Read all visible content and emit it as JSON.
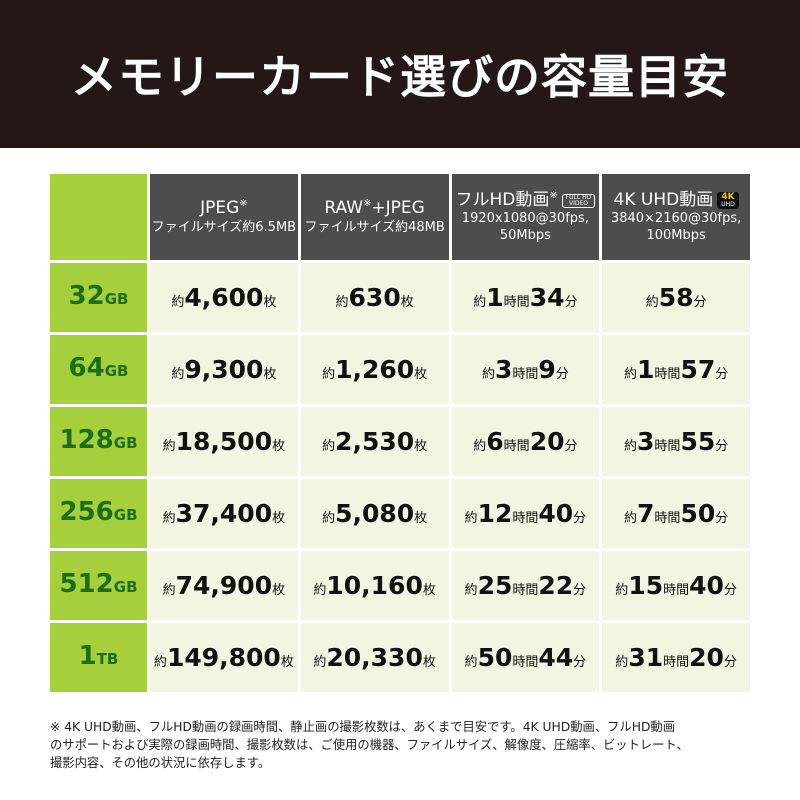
{
  "header": {
    "title": "メモリーカード選びの容量目安"
  },
  "table": {
    "columns": [
      {
        "line": [
          "JPEG",
          "※"
        ],
        "sub": [
          "ファイルサイズ約6.5MB"
        ]
      },
      {
        "line": [
          "RAW",
          "※",
          "+JPEG"
        ],
        "sub": [
          "ファイルサイズ約48MB"
        ]
      },
      {
        "line": [
          "フルHD動画",
          "※"
        ],
        "badge": [
          "FULL HD",
          "VIDEO"
        ],
        "sub": [
          "1920x1080@30fps,",
          "50Mbps"
        ]
      },
      {
        "line": [
          "4K UHD動画"
        ],
        "badge": [
          "4K",
          "UHD"
        ],
        "sub": [
          "3840×2160@30fps,",
          "100Mbps"
        ]
      }
    ],
    "rows": [
      {
        "label": [
          "32",
          "GB"
        ],
        "cells": [
          [
            "約",
            "4,600",
            "枚"
          ],
          [
            "約",
            "630",
            "枚"
          ],
          [
            "約",
            "1",
            "時間",
            "34",
            "分"
          ],
          [
            "約",
            "58",
            "分"
          ]
        ]
      },
      {
        "label": [
          "64",
          "GB"
        ],
        "cells": [
          [
            "約",
            "9,300",
            "枚"
          ],
          [
            "約",
            "1,260",
            "枚"
          ],
          [
            "約",
            "3",
            "時間",
            "9",
            "分"
          ],
          [
            "約",
            "1",
            "時間",
            "57",
            "分"
          ]
        ]
      },
      {
        "label": [
          "128",
          "GB"
        ],
        "cells": [
          [
            "約",
            "18,500",
            "枚"
          ],
          [
            "約",
            "2,530",
            "枚"
          ],
          [
            "約",
            "6",
            "時間",
            "20",
            "分"
          ],
          [
            "約",
            "3",
            "時間",
            "55",
            "分"
          ]
        ]
      },
      {
        "label": [
          "256",
          "GB"
        ],
        "cells": [
          [
            "約",
            "37,400",
            "枚"
          ],
          [
            "約",
            "5,080",
            "枚"
          ],
          [
            "約",
            "12",
            "時間",
            "40",
            "分"
          ],
          [
            "約",
            "7",
            "時間",
            "50",
            "分"
          ]
        ]
      },
      {
        "label": [
          "512",
          "GB"
        ],
        "cells": [
          [
            "約",
            "74,900",
            "枚"
          ],
          [
            "約",
            "10,160",
            "枚"
          ],
          [
            "約",
            "25",
            "時間",
            "22",
            "分"
          ],
          [
            "約",
            "15",
            "時間",
            "40",
            "分"
          ]
        ]
      },
      {
        "label": [
          "1",
          "TB"
        ],
        "cells": [
          [
            "約",
            "149,800",
            "枚"
          ],
          [
            "約",
            "20,330",
            "枚"
          ],
          [
            "約",
            "50",
            "時間",
            "44",
            "分"
          ],
          [
            "約",
            "31",
            "時間",
            "20",
            "分"
          ]
        ]
      }
    ]
  },
  "note": {
    "lines": [
      "※ 4K UHD動画、フルHD動画の録画時間、静止画の撮影枚数は、あくまで目安です。4K UHD動画、フルHD動画",
      "のサポートおよび実際の録画時間、撮影枚数は、ご使用の機器、ファイルサイズ、解像度、圧縮率、ビットレート、",
      "撮影内容、その他の状況に依存します。"
    ]
  }
}
